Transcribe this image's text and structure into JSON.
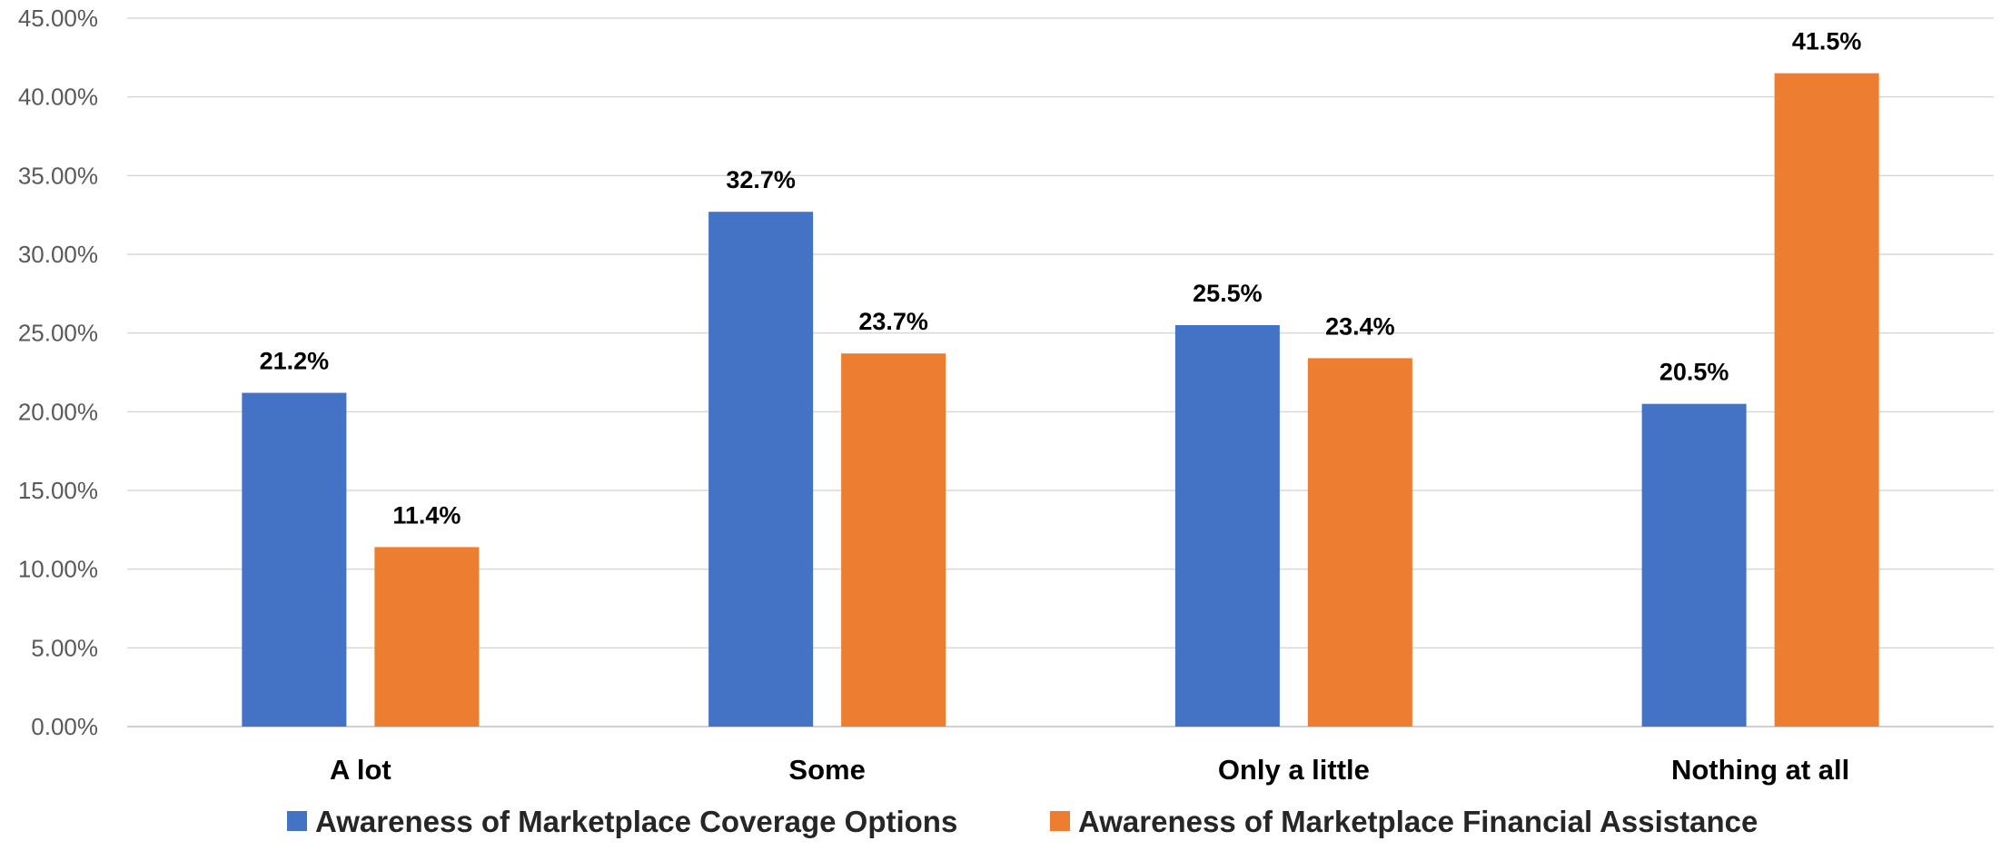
{
  "chart_data": {
    "type": "bar",
    "categories": [
      "A lot",
      "Some",
      "Only a little",
      "Nothing at all"
    ],
    "series": [
      {
        "name": "Awareness of Marketplace Coverage Options",
        "values": [
          21.2,
          32.7,
          25.5,
          20.5
        ],
        "labels": [
          "21.2%",
          "32.7%",
          "25.5%",
          "20.5%"
        ],
        "color": "#4472C4"
      },
      {
        "name": "Awareness of Marketplace Financial Assistance",
        "values": [
          11.4,
          23.7,
          23.4,
          41.5
        ],
        "labels": [
          "11.4%",
          "23.7%",
          "23.4%",
          "41.5%"
        ],
        "color": "#ED7D31"
      }
    ],
    "y_ticks": [
      "0.00%",
      "5.00%",
      "10.00%",
      "15.00%",
      "20.00%",
      "25.00%",
      "30.00%",
      "35.00%",
      "40.00%",
      "45.00%"
    ],
    "ylim": [
      0,
      45
    ],
    "grid": true,
    "legend_position": "bottom",
    "title": "",
    "xlabel": "",
    "ylabel": ""
  }
}
